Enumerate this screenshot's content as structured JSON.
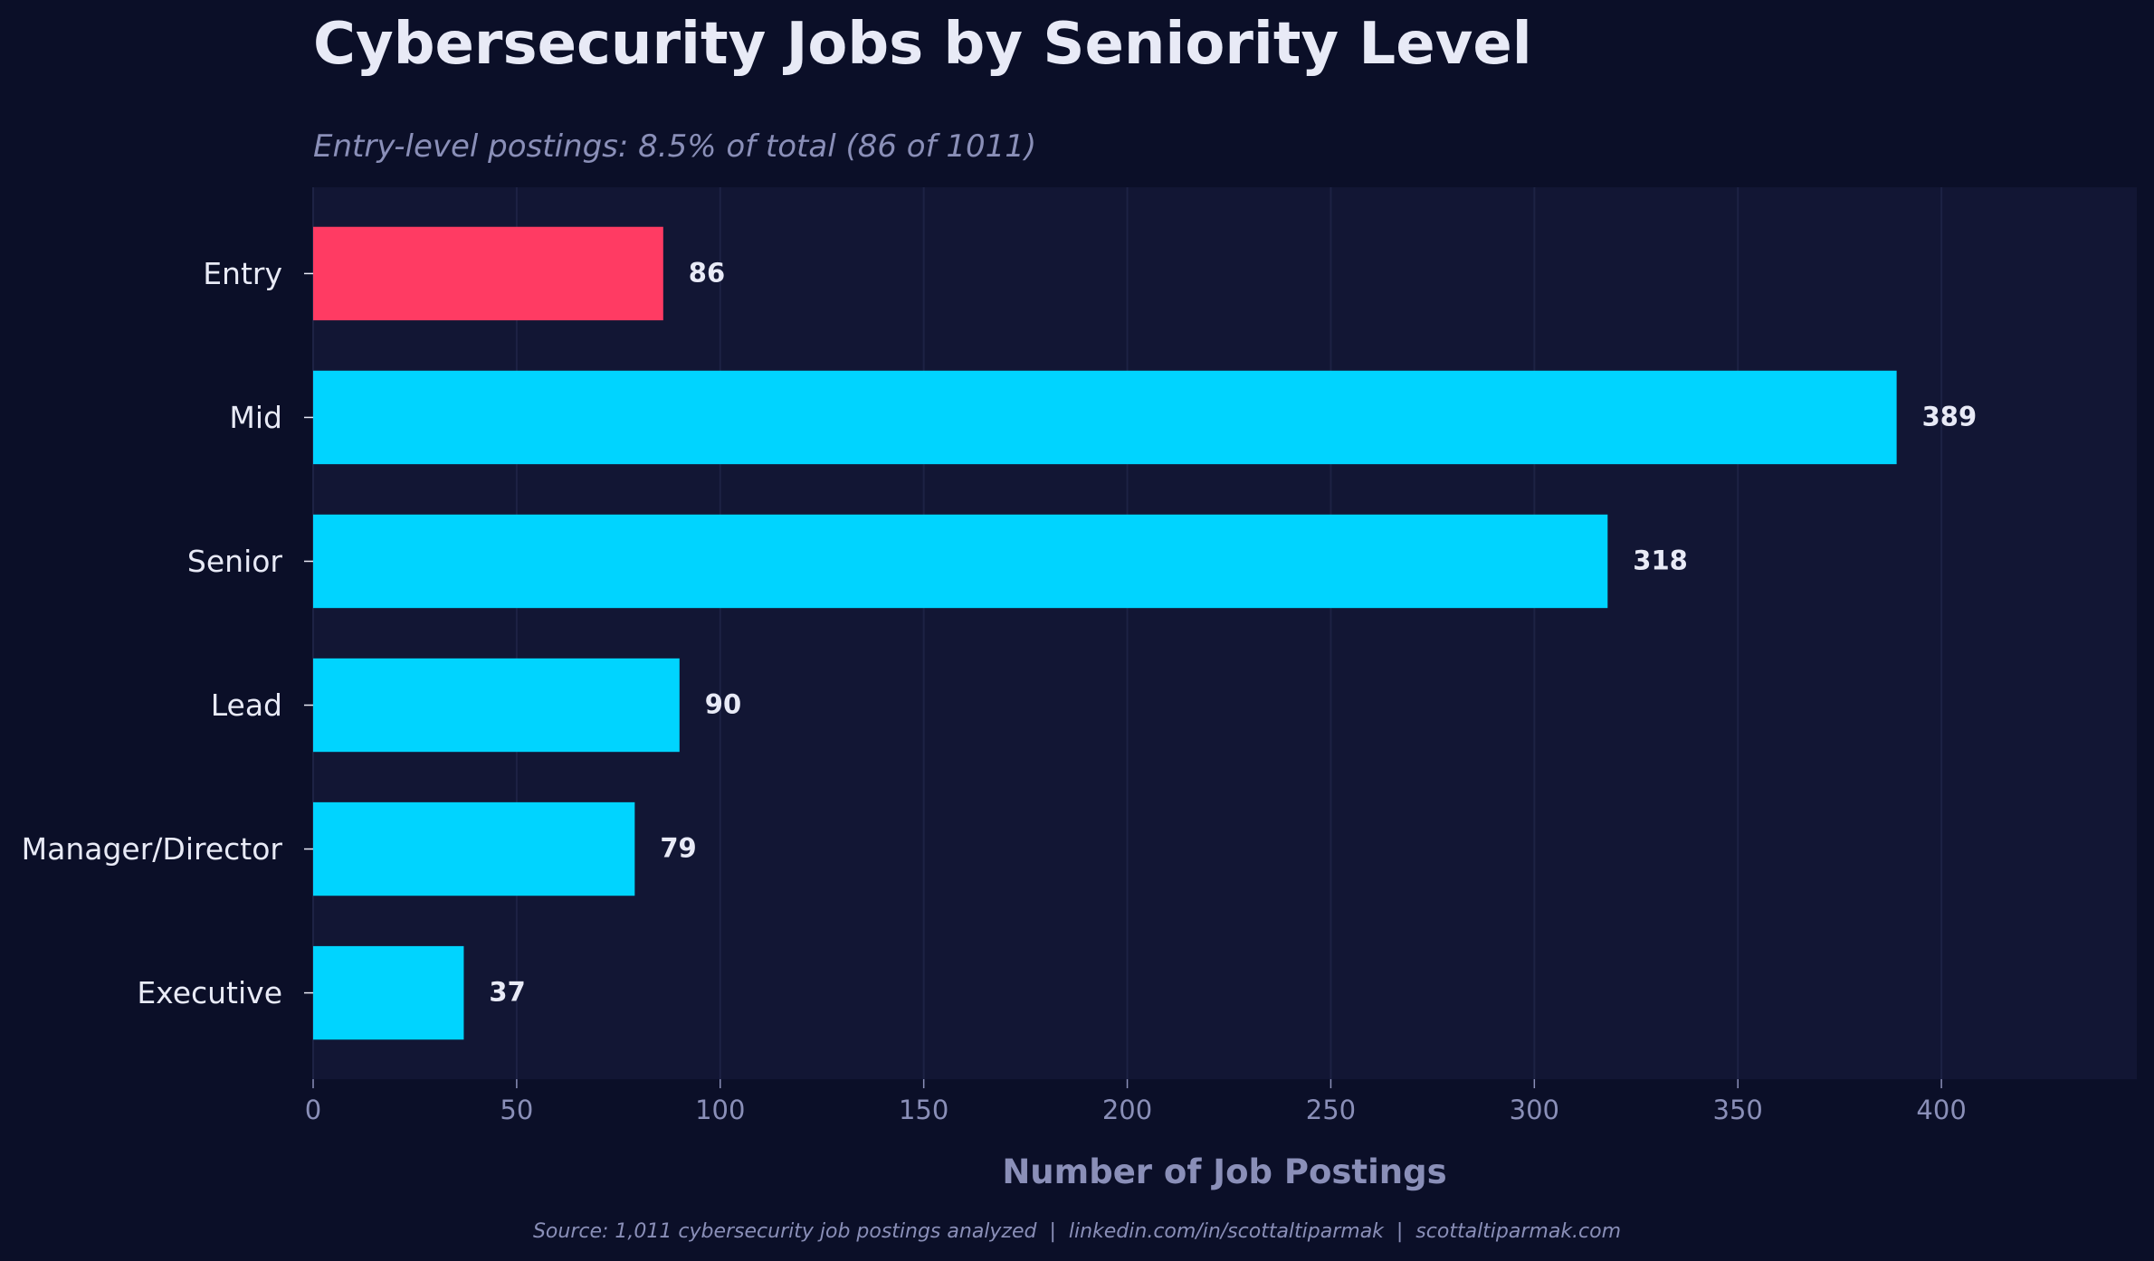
{
  "chart_data": {
    "type": "bar",
    "orientation": "horizontal",
    "title": "Cybersecurity Jobs by Seniority Level",
    "subtitle": "Entry-level postings: 8.5% of total (86 of 1011)",
    "categories": [
      "Entry",
      "Mid",
      "Senior",
      "Lead",
      "Manager/Director",
      "Executive"
    ],
    "values": [
      86,
      389,
      318,
      90,
      79,
      37
    ],
    "highlight_category": "Entry",
    "xlabel": "Number of Job Postings",
    "ylabel": "",
    "xlim": [
      0,
      448
    ],
    "xticks": [
      0,
      50,
      100,
      150,
      200,
      250,
      300,
      350,
      400
    ],
    "grid": "vertical",
    "legend": "none",
    "footer": "Source: 1,011 cybersecurity job postings analyzed  |  linkedin.com/in/scottaltiparmak  |  scottaltiparmak.com"
  },
  "colors": {
    "background": "#0b0f28",
    "plot_background": "#121634",
    "bar": "#00d4ff",
    "highlight_bar": "#ff3b63",
    "grid": "#1d2244",
    "text": "#e8eaf6",
    "muted_text": "#8a8fb8"
  }
}
